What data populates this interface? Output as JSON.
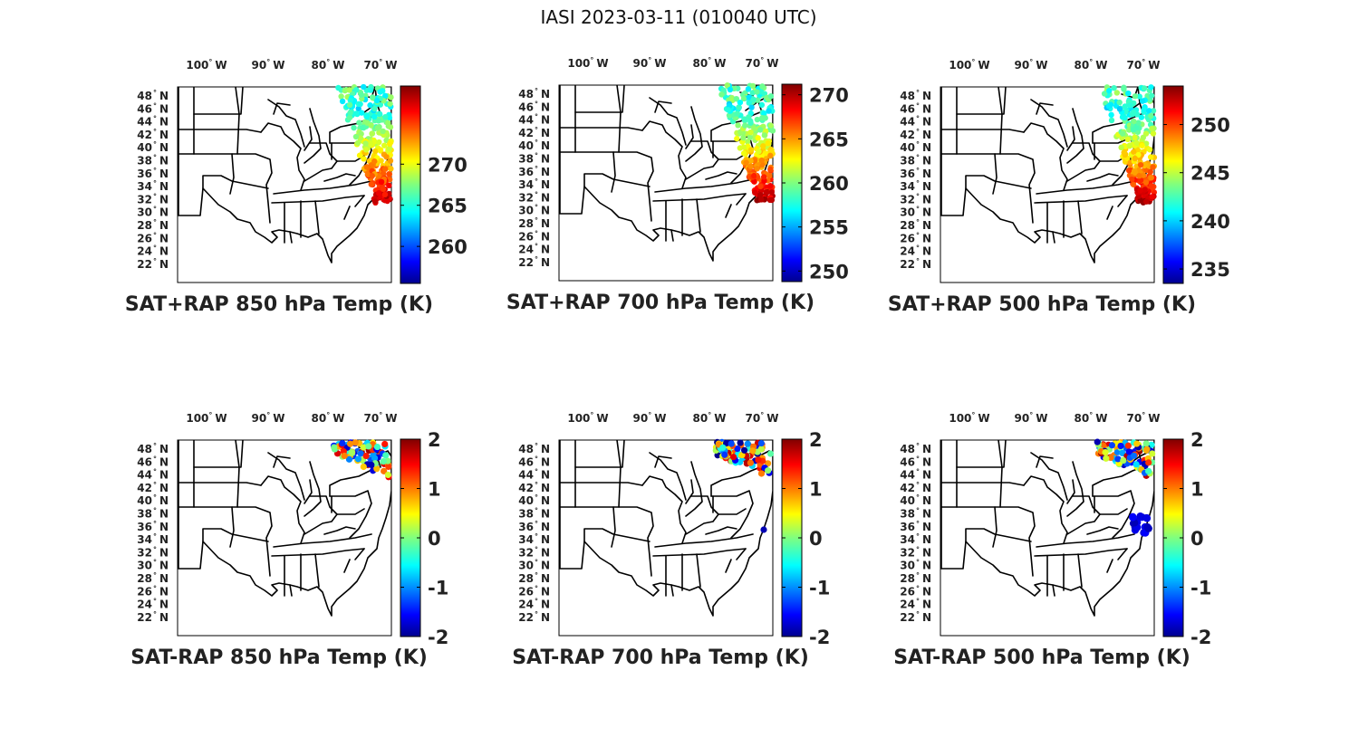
{
  "title": "IASI 2023-03-11 (010040 UTC)",
  "longitude_ticks": [
    "100",
    "90",
    "80",
    "70"
  ],
  "longitude_suffix": "W",
  "latitude_ticks": [
    "48",
    "46",
    "44",
    "42",
    "40",
    "38",
    "36",
    "34",
    "32",
    "30",
    "28",
    "26",
    "24",
    "22"
  ],
  "latitude_suffix": "N",
  "colormap": "jet",
  "panels": [
    {
      "id": "sat-rap-850-sum",
      "title": "SAT+RAP 850 hPa Temp (K)",
      "clim": [
        255.5,
        279.5
      ],
      "cb_ticks": [
        260,
        265,
        270
      ],
      "cb_labels": [
        "260",
        "265",
        "270"
      ],
      "swath": "northeast-coastal"
    },
    {
      "id": "sat-rap-700-sum",
      "title": "SAT+RAP 700 hPa Temp (K)",
      "clim": [
        248.8,
        271.2
      ],
      "cb_ticks": [
        250,
        255,
        260,
        265,
        270
      ],
      "cb_labels": [
        "250",
        "255",
        "260",
        "265",
        "270"
      ],
      "swath": "northeast-coastal"
    },
    {
      "id": "sat-rap-500-sum",
      "title": "SAT+RAP 500 hPa Temp (K)",
      "clim": [
        233.5,
        254
      ],
      "cb_ticks": [
        235,
        240,
        245,
        250
      ],
      "cb_labels": [
        "235",
        "240",
        "245",
        "250"
      ],
      "swath": "northeast-coastal"
    },
    {
      "id": "sat-rap-850-diff",
      "title": "SAT-RAP 850 hPa Temp (K)",
      "clim": [
        -2,
        2
      ],
      "cb_ticks": [
        -2,
        -1,
        0,
        1,
        2
      ],
      "cb_labels": [
        "-2",
        "-1",
        "0",
        "1",
        "2"
      ],
      "swath": "northeast-corner"
    },
    {
      "id": "sat-rap-700-diff",
      "title": "SAT-RAP 700 hPa Temp (K)",
      "clim": [
        -2,
        2
      ],
      "cb_ticks": [
        -2,
        -1,
        0,
        1,
        2
      ],
      "cb_labels": [
        "-2",
        "-1",
        "0",
        "1",
        "2"
      ],
      "swath": "northeast-corner-plus-dot"
    },
    {
      "id": "sat-rap-500-diff",
      "title": "SAT-RAP 500 hPa Temp (K)",
      "clim": [
        -2,
        2
      ],
      "cb_ticks": [
        -2,
        -1,
        0,
        1,
        2
      ],
      "cb_labels": [
        "-2",
        "-1",
        "0",
        "1",
        "2"
      ],
      "swath": "northeast-corner-plus-cluster"
    }
  ]
}
